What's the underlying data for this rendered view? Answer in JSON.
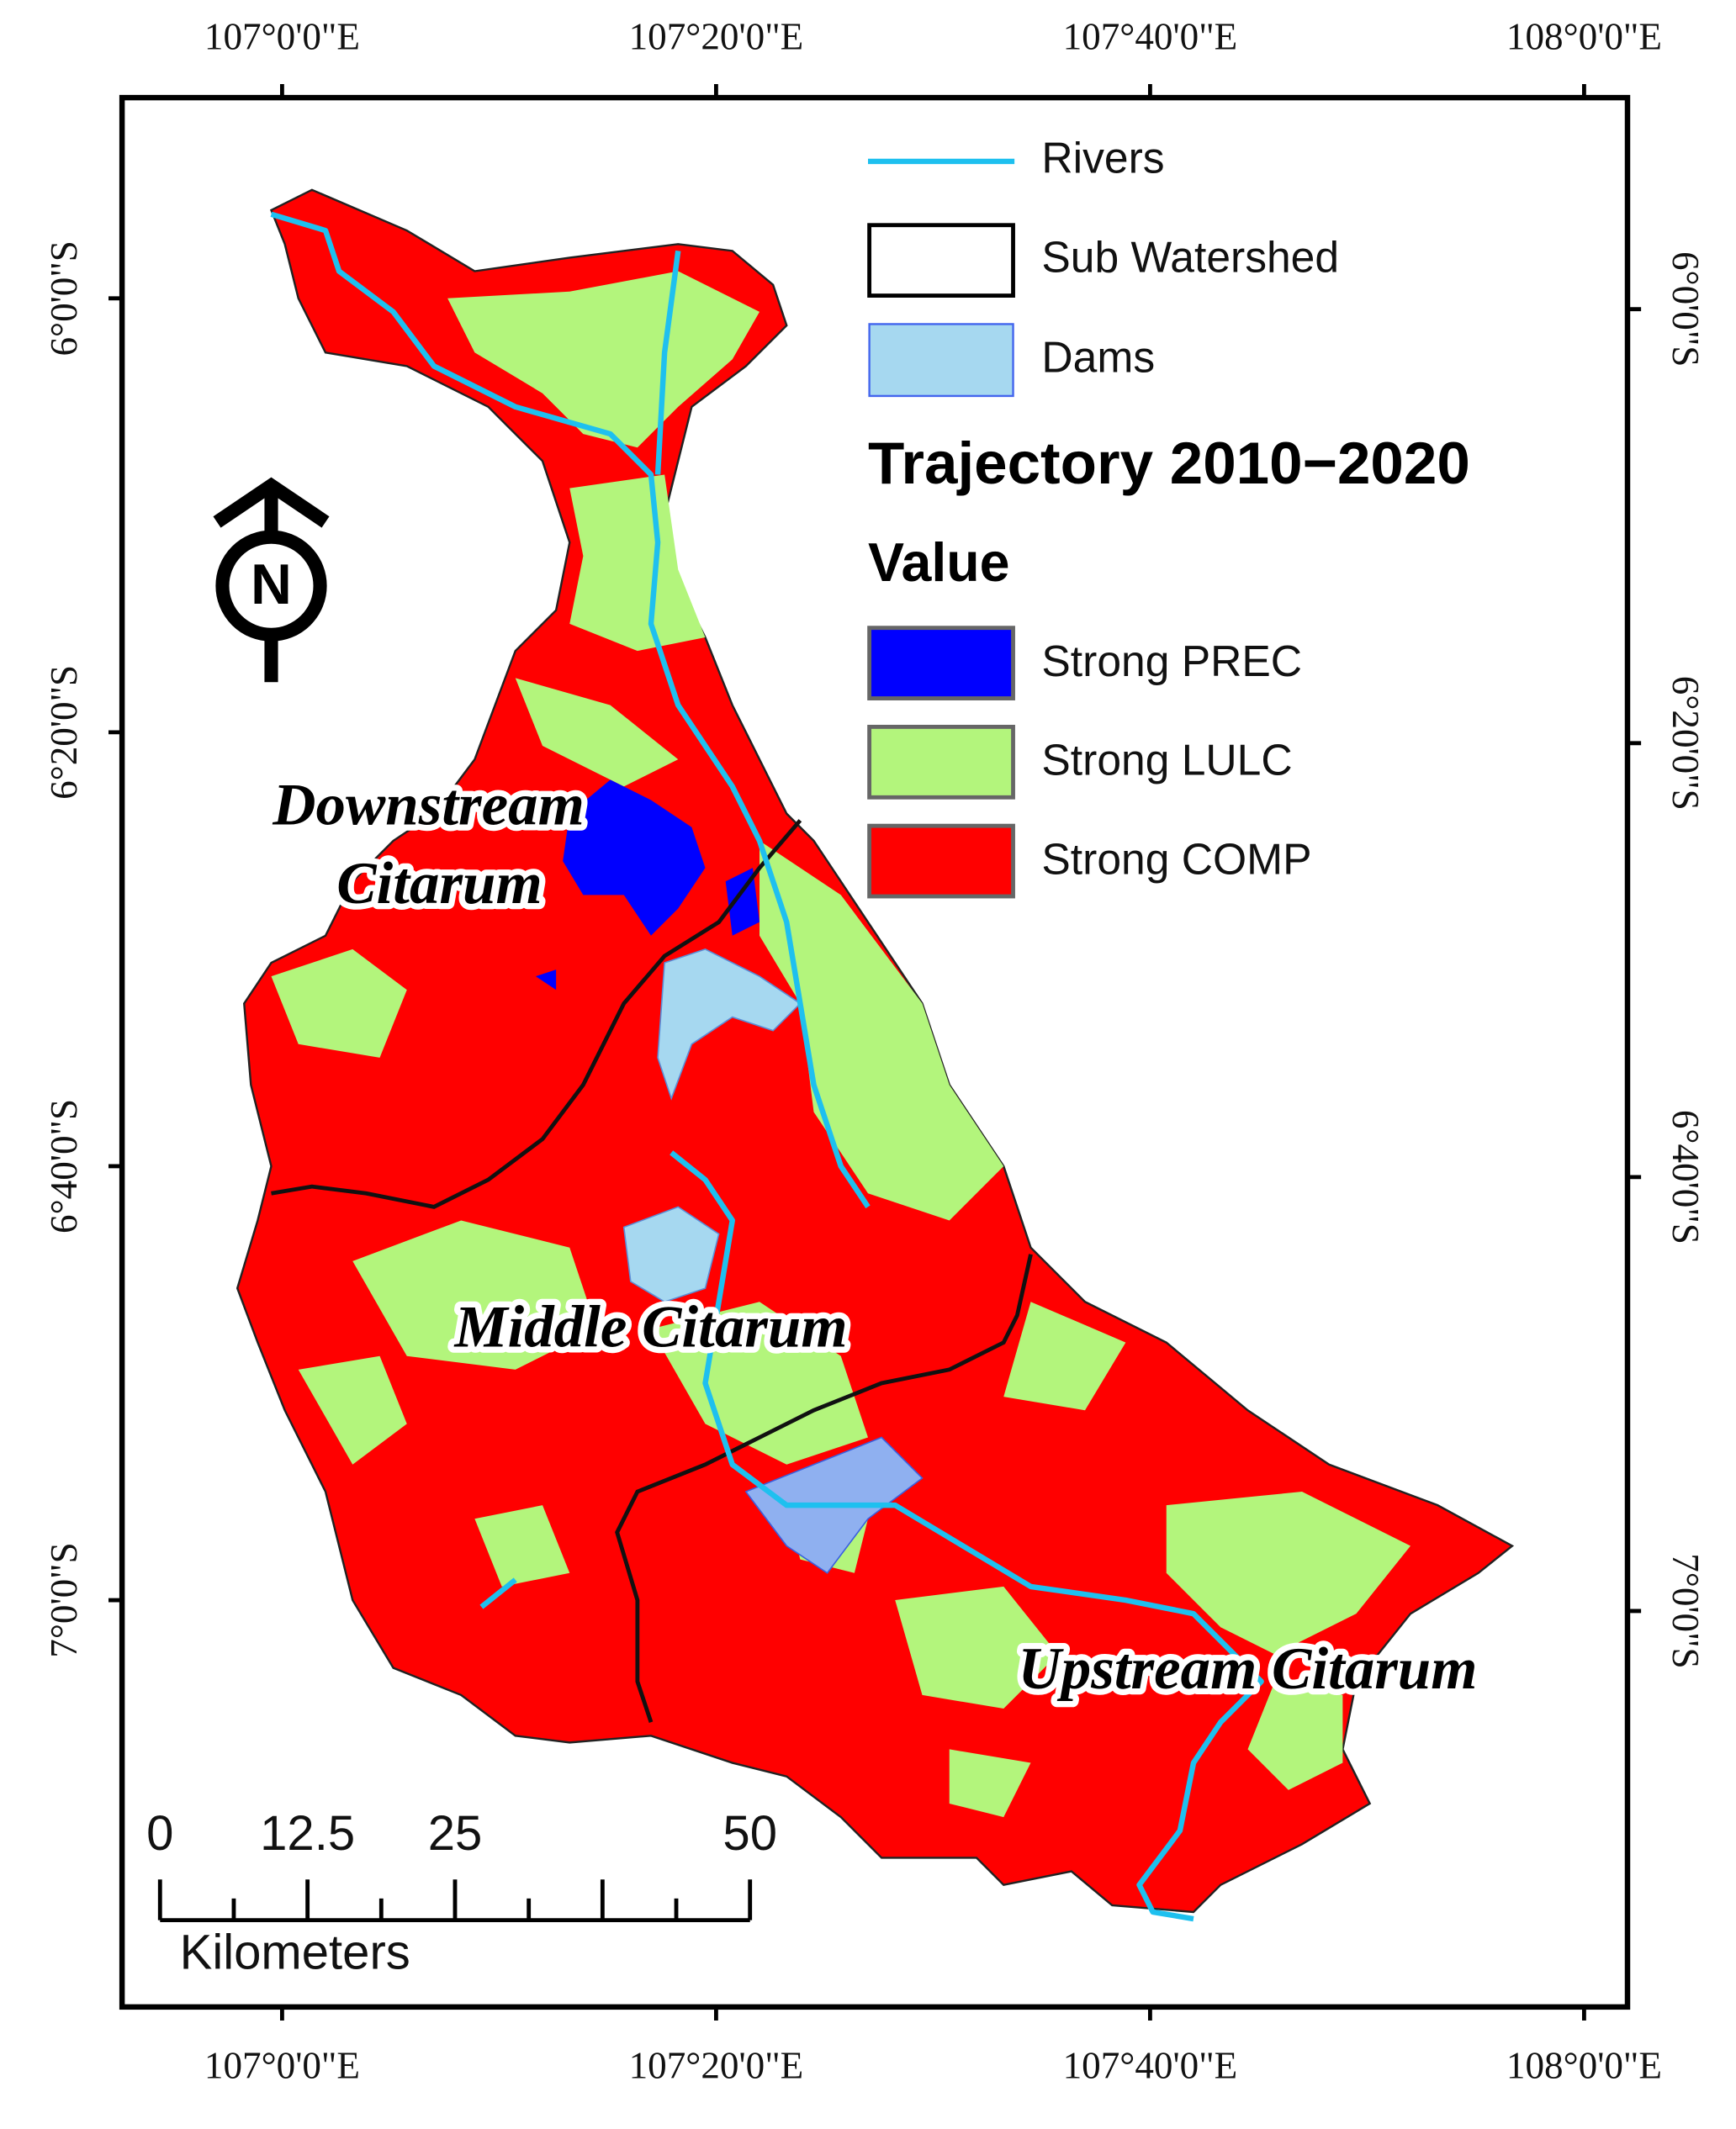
{
  "graticule": {
    "top": [
      "107°0'0\"E",
      "107°20'0\"E",
      "107°40'0\"E",
      "108°0'0\"E"
    ],
    "bottom": [
      "107°0'0\"E",
      "107°20'0\"E",
      "107°40'0\"E",
      "108°0'0\"E"
    ],
    "left": [
      "6°0'0\"S",
      "6°20'0\"S",
      "6°40'0\"S",
      "7°0'0\"S"
    ],
    "right": [
      "6°0'0\"S",
      "6°20'0\"S",
      "6°40'0\"S",
      "7°0'0\"S"
    ]
  },
  "legend": {
    "items": [
      {
        "label": "Rivers"
      },
      {
        "label": "Sub Watershed"
      },
      {
        "label": "Dams"
      }
    ],
    "title": "Trajectory 2010−2020",
    "value_heading": "Value",
    "classes": [
      {
        "label": "Strong PREC",
        "color": "#0000ff"
      },
      {
        "label": "Strong LULC",
        "color": "#b3f57c"
      },
      {
        "label": "Strong COMP",
        "color": "#ff0000"
      }
    ]
  },
  "regions": [
    {
      "lines": [
        "Downstream",
        "Citarum"
      ]
    },
    {
      "lines": [
        "Middle Citarum"
      ]
    },
    {
      "lines": [
        "Upstream Citarum"
      ]
    }
  ],
  "north_arrow": "N",
  "scale_bar": {
    "labels": [
      0,
      12.5,
      25,
      50
    ],
    "unit": "Kilometers"
  }
}
